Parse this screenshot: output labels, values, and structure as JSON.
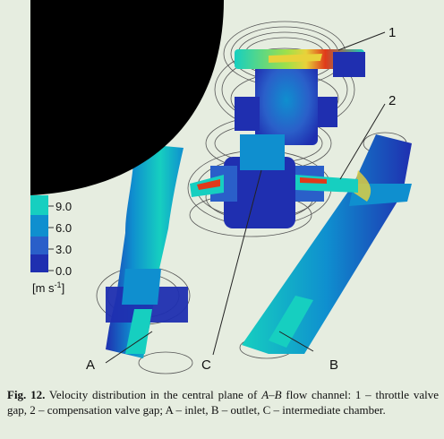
{
  "legend": {
    "ticks": [
      "9.0",
      "6.0",
      "3.0",
      "0.0"
    ],
    "unit": "[m s",
    "unit_exp": "-1",
    "unit_close": "]",
    "colors": [
      "#16cfc0",
      "#0f8fcf",
      "#2a5fc9",
      "#1f2fb0"
    ]
  },
  "callouts": {
    "label_1": "1",
    "label_2": "2",
    "label_a": "A",
    "label_b": "B",
    "label_c": "C"
  },
  "caption": {
    "label": "Fig. 12.",
    "text_1": " Velocity distribution in the central plane of ",
    "italic_1": "A",
    "dash": "–",
    "italic_2": "B",
    "text_2": " flow channel: 1 – throttle valve gap, 2 – compensation valve gap; A – inlet, B – outlet, C – intermediate chamber."
  },
  "colors": {
    "background": "#e6ede0",
    "field_low": "#1f2fb0",
    "field_mid": "#0f8fcf",
    "field_high": "#16cfc0",
    "hot_spot": "#e03a1a"
  }
}
